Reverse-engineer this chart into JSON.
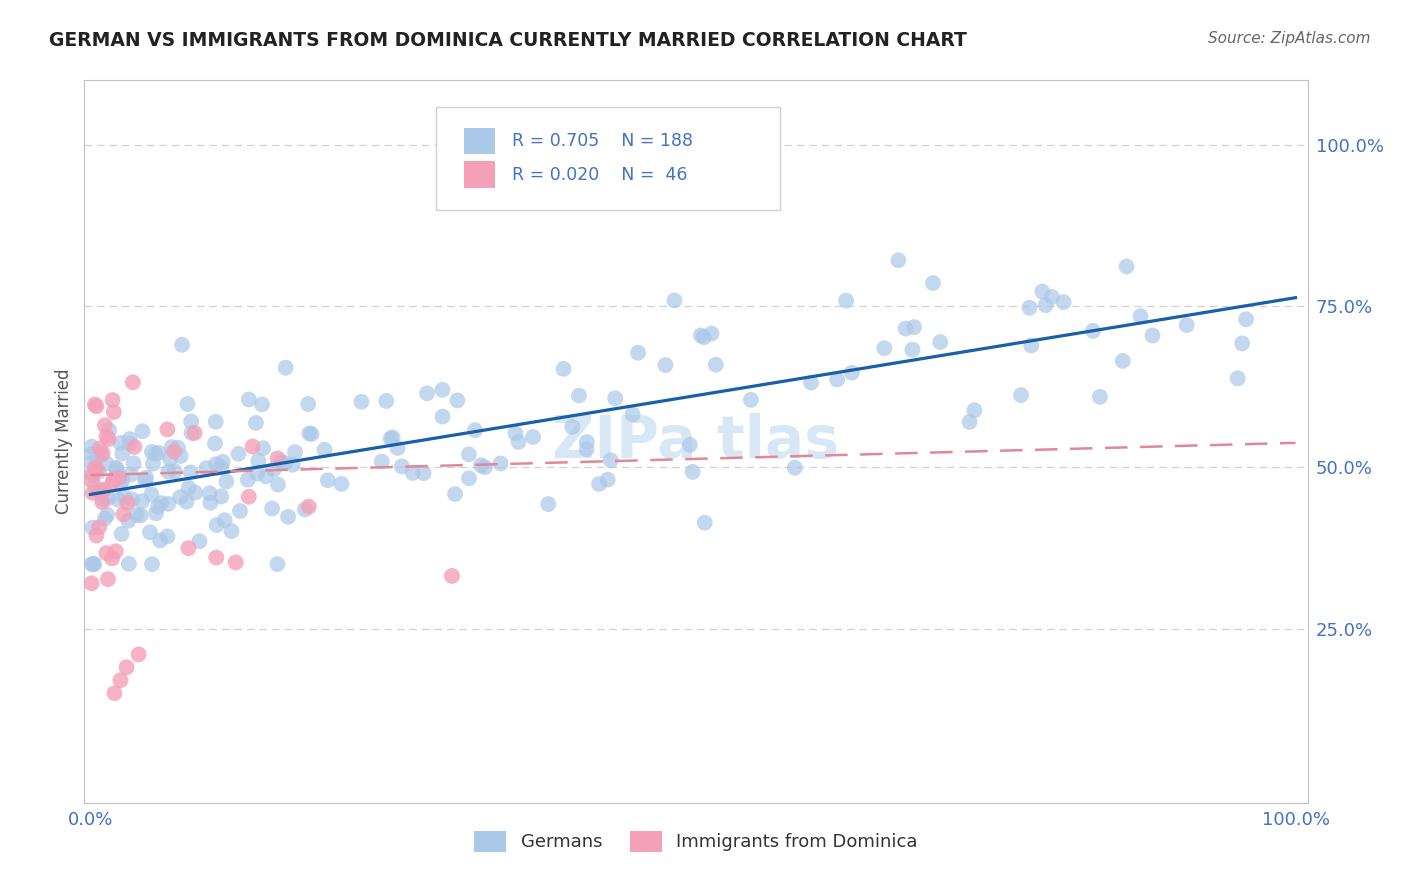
{
  "title": "GERMAN VS IMMIGRANTS FROM DOMINICA CURRENTLY MARRIED CORRELATION CHART",
  "source": "Source: ZipAtlas.com",
  "ylabel": "Currently Married",
  "legend_labels": [
    "Germans",
    "Immigrants from Dominica"
  ],
  "r_german": 0.705,
  "n_german": 188,
  "r_dominica": 0.02,
  "n_dominica": 46,
  "color_german": "#aac8e8",
  "color_dominica": "#f4a0b8",
  "trendline_german_color": "#1a5fa8",
  "trendline_dominica_color": "#e08898",
  "title_color": "#222222",
  "tick_label_color": "#4472c4",
  "source_color": "#666666",
  "legend_r_color": "#4472c4",
  "background_color": "#ffffff",
  "grid_color": "#cccccc",
  "watermark_color": "#b8d4ec",
  "watermark_text": "ZIPa tlas"
}
